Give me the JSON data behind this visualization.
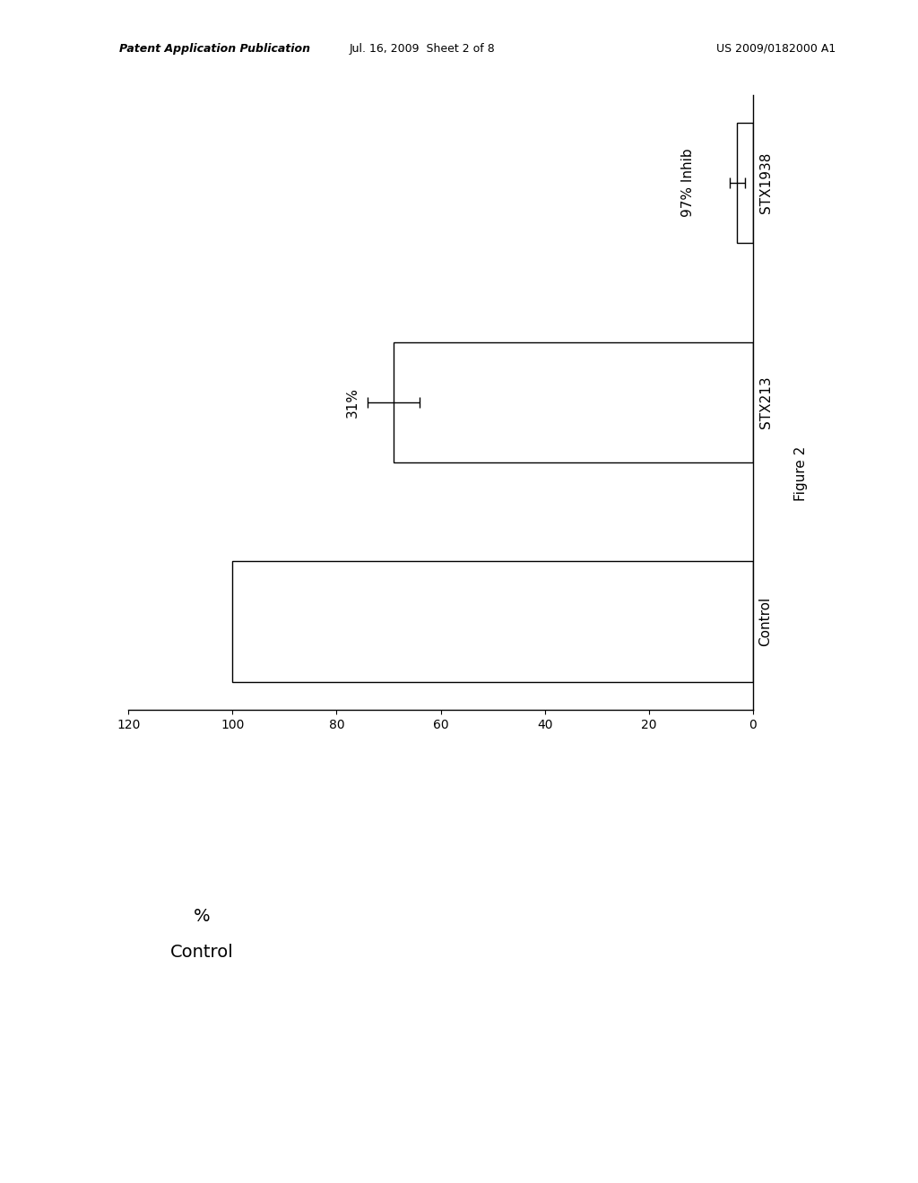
{
  "categories": [
    "Control",
    "STX213",
    "STX1938"
  ],
  "values": [
    100,
    69,
    3
  ],
  "error_stx213": 5,
  "error_stx1938": 1.5,
  "xlim_min": 0,
  "xlim_max": 120,
  "xticks": [
    0,
    20,
    40,
    60,
    80,
    100,
    120
  ],
  "bar_color": "#ffffff",
  "bar_edge_color": "#000000",
  "bar_height": 0.55,
  "annotation_31": "31%",
  "annotation_97": "97% Inhib",
  "figure_label": "Figure 2",
  "ylabel_line1": "%",
  "ylabel_line2": "Control",
  "background_color": "#ffffff",
  "title_left": "Patent Application Publication",
  "title_mid": "Jul. 16, 2009  Sheet 2 of 8",
  "title_right": "US 2009/0182000 A1",
  "title_fontsize": 9,
  "tick_fontsize": 10,
  "label_fontsize": 11,
  "ylabel_fontsize": 14
}
